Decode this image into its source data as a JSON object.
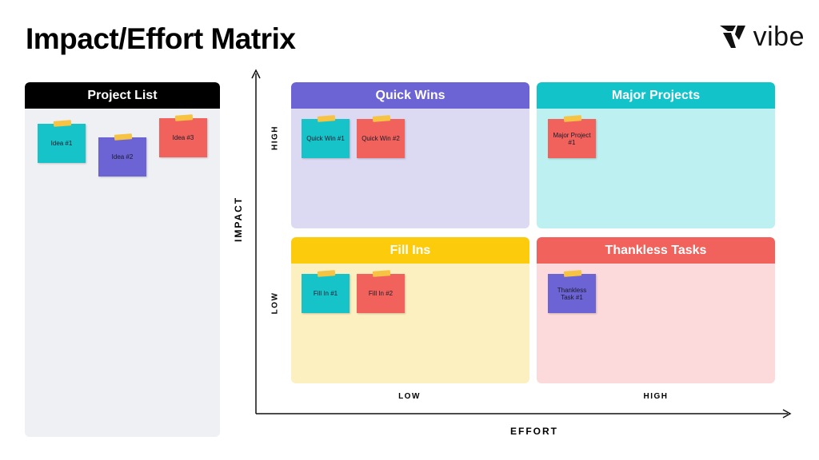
{
  "title": "Impact/Effort Matrix",
  "logo": {
    "text": "vibe"
  },
  "project_list": {
    "header": "Project List",
    "notes": [
      "Idea #1",
      "Idea #2",
      "Idea #3"
    ]
  },
  "quadrants": {
    "quick_wins": {
      "header": "Quick Wins",
      "notes": [
        "Quick Win #1",
        "Quick Win #2"
      ]
    },
    "major_projects": {
      "header": "Major Projects",
      "notes": [
        "Major Project #1"
      ]
    },
    "fill_ins": {
      "header": "Fill Ins",
      "notes": [
        "Fill In #1",
        "Fill In #2"
      ]
    },
    "thankless_tasks": {
      "header": "Thankless Tasks",
      "notes": [
        "Thankless Task #1"
      ]
    }
  },
  "axes": {
    "y_title": "IMPACT",
    "y_high": "HIGH",
    "y_low": "LOW",
    "x_title": "EFFORT",
    "x_low": "LOW",
    "x_high": "HIGH"
  },
  "colors": {
    "quick_wins": "#6c63d4",
    "major_projects": "#12c3ca",
    "fill_ins": "#fccb0c",
    "thankless_tasks": "#f2625c",
    "sticky_teal": "#16c3c9",
    "sticky_purple": "#6c63d4",
    "sticky_coral": "#f2625c",
    "tape": "#f6c343"
  }
}
